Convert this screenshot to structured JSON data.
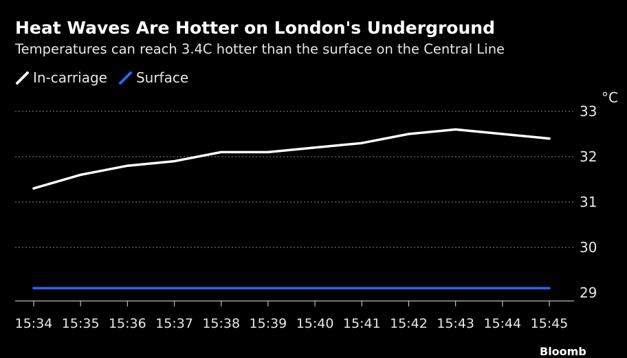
{
  "title": "Heat Waves Are Hotter on London's Underground",
  "subtitle": "Temperatures can reach 3.4C hotter than the surface on the Central Line",
  "colors": {
    "in_carriage": "#ffffff",
    "surface": "#1f6bff",
    "grid": "#8a8a8a",
    "axis": "#bdbdbd"
  },
  "source_partial": "Bloomb",
  "chart_data": {
    "type": "line",
    "unit": "°C",
    "x": [
      "15:34",
      "15:35",
      "15:36",
      "15:37",
      "15:38",
      "15:39",
      "15:40",
      "15:41",
      "15:42",
      "15:43",
      "15:44",
      "15:45"
    ],
    "series": [
      {
        "name": "In-carriage",
        "values": [
          31.3,
          31.6,
          31.8,
          31.9,
          32.1,
          32.1,
          32.2,
          32.3,
          32.5,
          32.6,
          32.5,
          32.4
        ]
      },
      {
        "name": "Surface",
        "values": [
          29.1,
          29.1,
          29.1,
          29.1,
          29.1,
          29.1,
          29.1,
          29.1,
          29.1,
          29.1,
          29.1,
          29.1
        ]
      }
    ],
    "yticks": [
      29,
      30,
      31,
      32,
      33
    ],
    "ylim": [
      28.7,
      33.3
    ],
    "grid": true,
    "legend_position": "top-left"
  }
}
